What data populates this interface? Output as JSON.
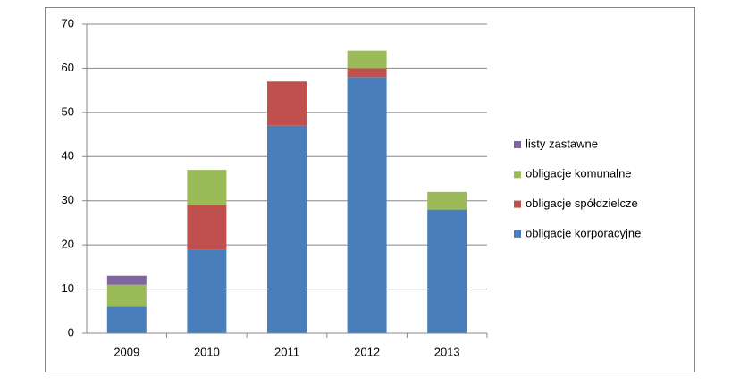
{
  "chart_data": {
    "type": "stacked-bar",
    "categories": [
      "2009",
      "2010",
      "2011",
      "2012",
      "2013"
    ],
    "series": [
      {
        "name": "obligacje korporacyjne",
        "color": "#4a7ebb",
        "values": [
          6,
          19,
          47,
          58,
          28
        ]
      },
      {
        "name": "obligacje spółdzielcze",
        "color": "#c0504d",
        "values": [
          0,
          10,
          10,
          2,
          0
        ]
      },
      {
        "name": "obligacje komunalne",
        "color": "#9bbb59",
        "values": [
          5,
          8,
          0,
          4,
          4
        ]
      },
      {
        "name": "listy zastawne",
        "color": "#8064a2",
        "values": [
          2,
          0,
          0,
          0,
          0
        ]
      }
    ],
    "ylim": [
      0,
      70
    ],
    "yticks": [
      0,
      10,
      20,
      30,
      40,
      50,
      60,
      70
    ],
    "grid": true,
    "legend": "right"
  }
}
